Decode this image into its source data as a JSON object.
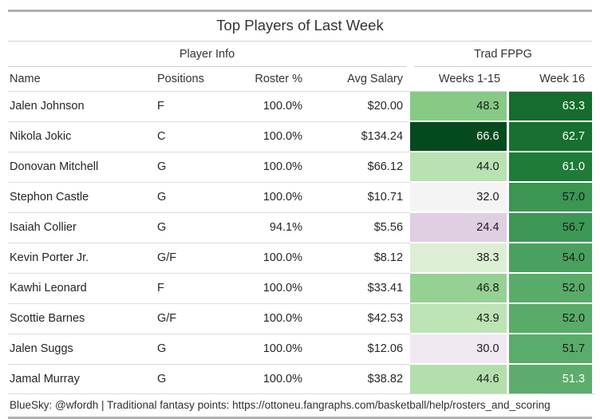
{
  "chart_data": {
    "type": "table",
    "title": "Top Players of Last Week",
    "column_groups": [
      {
        "label": "Player Info",
        "span": 4
      },
      {
        "label": "Trad FPPG",
        "span": 2
      }
    ],
    "columns": [
      "Name",
      "Positions",
      "Roster %",
      "Avg Salary",
      "Weeks 1-15",
      "Week 16"
    ],
    "rows": [
      {
        "name": "Jalen Johnson",
        "positions": "F",
        "roster": "100.0%",
        "salary": "$20.00",
        "weeks1_15": "48.3",
        "week16": "63.3",
        "w115_bg": "#86ca86",
        "w115_fg": "#1a1a1a",
        "w16_bg": "#156c2c",
        "w16_fg": "#ffffff"
      },
      {
        "name": "Nikola Jokic",
        "positions": "C",
        "roster": "100.0%",
        "salary": "$134.24",
        "weeks1_15": "66.6",
        "week16": "62.7",
        "w115_bg": "#054a1e",
        "w115_fg": "#ffffff",
        "w16_bg": "#17702f",
        "w16_fg": "#ffffff"
      },
      {
        "name": "Donovan Mitchell",
        "positions": "G",
        "roster": "100.0%",
        "salary": "$66.12",
        "weeks1_15": "44.0",
        "week16": "61.0",
        "w115_bg": "#b9e2b2",
        "w115_fg": "#1a1a1a",
        "w16_bg": "#1e7b38",
        "w16_fg": "#ffffff"
      },
      {
        "name": "Stephon Castle",
        "positions": "G",
        "roster": "100.0%",
        "salary": "$10.71",
        "weeks1_15": "32.0",
        "week16": "57.0",
        "w115_bg": "#f5f4f5",
        "w115_fg": "#1a1a1a",
        "w16_bg": "#3b9553",
        "w16_fg": "#1a1a1a"
      },
      {
        "name": "Isaiah Collier",
        "positions": "G",
        "roster": "94.1%",
        "salary": "$5.56",
        "weeks1_15": "24.4",
        "week16": "56.7",
        "w115_bg": "#e0cee3",
        "w115_fg": "#1a1a1a",
        "w16_bg": "#3d9755",
        "w16_fg": "#1a1a1a"
      },
      {
        "name": "Kevin Porter Jr.",
        "positions": "G/F",
        "roster": "100.0%",
        "salary": "$8.12",
        "weeks1_15": "38.3",
        "week16": "54.0",
        "w115_bg": "#dcefd5",
        "w115_fg": "#1a1a1a",
        "w16_bg": "#4aa15f",
        "w16_fg": "#1a1a1a"
      },
      {
        "name": "Kawhi Leonard",
        "positions": "F",
        "roster": "100.0%",
        "salary": "$33.41",
        "weeks1_15": "46.8",
        "week16": "52.0",
        "w115_bg": "#95d193",
        "w115_fg": "#1a1a1a",
        "w16_bg": "#58ab69",
        "w16_fg": "#1a1a1a"
      },
      {
        "name": "Scottie Barnes",
        "positions": "G/F",
        "roster": "100.0%",
        "salary": "$42.53",
        "weeks1_15": "43.9",
        "week16": "52.0",
        "w115_bg": "#bce4b5",
        "w115_fg": "#1a1a1a",
        "w16_bg": "#58ab69",
        "w16_fg": "#1a1a1a"
      },
      {
        "name": "Jalen Suggs",
        "positions": "G",
        "roster": "100.0%",
        "salary": "$12.06",
        "weeks1_15": "30.0",
        "week16": "51.7",
        "w115_bg": "#f0e8f1",
        "w115_fg": "#1a1a1a",
        "w16_bg": "#5aac6b",
        "w16_fg": "#1a1a1a"
      },
      {
        "name": "Jamal Murray",
        "positions": "G",
        "roster": "100.0%",
        "salary": "$38.82",
        "weeks1_15": "44.6",
        "week16": "51.3",
        "w115_bg": "#b3dfac",
        "w115_fg": "#1a1a1a",
        "w16_bg": "#5cad6d",
        "w16_fg": "#ffffff"
      }
    ],
    "heatmap": {
      "columns": [
        "Weeks 1-15",
        "Week 16"
      ],
      "palette": "purple-white-green diverging",
      "low_color": "#e0cee3",
      "mid_color": "#f7f7f7",
      "high_color": "#054a1e",
      "min_value": 24.4,
      "max_value": 66.6
    },
    "footer": "BlueSky: @wfordh | Traditional fantasy points: https://ottoneu.fangraphs.com/basketball/help/rosters_and_scoring",
    "layout": {
      "grid": "horizontal rules only",
      "title_position": "top-center",
      "source_note_position": "bottom-left"
    }
  }
}
